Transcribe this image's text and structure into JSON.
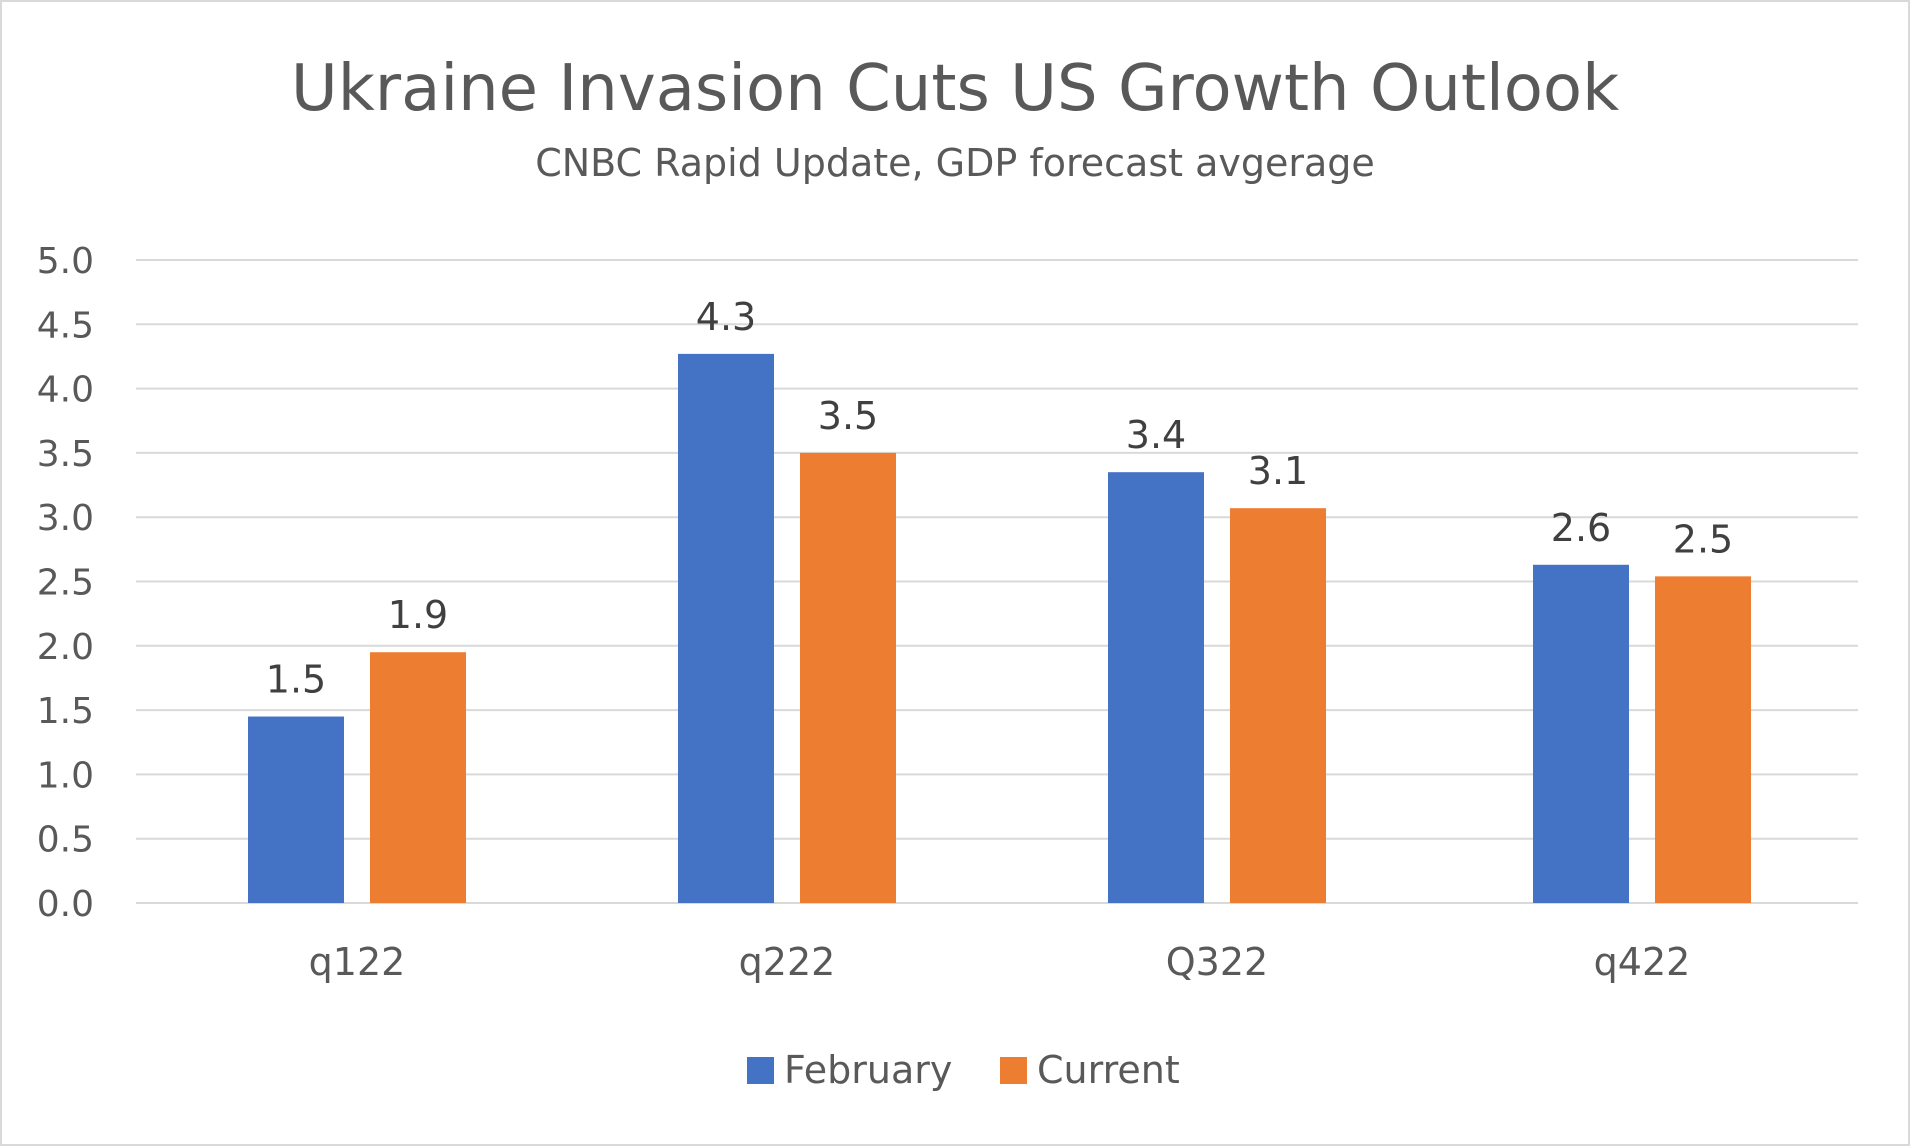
{
  "chart_data": {
    "type": "bar",
    "title": "Ukraine Invasion Cuts US Growth Outlook",
    "subtitle": "CNBC Rapid Update, GDP forecast avgerage",
    "categories": [
      "q122",
      "q222",
      "Q322",
      "q422"
    ],
    "series": [
      {
        "name": "February",
        "color": "#4472c4",
        "values": [
          1.45,
          4.27,
          3.35,
          2.63
        ],
        "labels": [
          "1.5",
          "4.3",
          "3.4",
          "2.6"
        ]
      },
      {
        "name": "Current",
        "color": "#ed7d31",
        "values": [
          1.95,
          3.5,
          3.07,
          2.54
        ],
        "labels": [
          "1.9",
          "3.5",
          "3.1",
          "2.5"
        ]
      }
    ],
    "yticks": [
      "0.0",
      "0.5",
      "1.0",
      "1.5",
      "2.0",
      "2.5",
      "3.0",
      "3.5",
      "4.0",
      "4.5",
      "5.0"
    ],
    "ylim": [
      0,
      5
    ],
    "xlabel": "",
    "ylabel": "",
    "grid": true,
    "legend_position": "bottom-center",
    "gridline_color": "#d9d9d9"
  }
}
